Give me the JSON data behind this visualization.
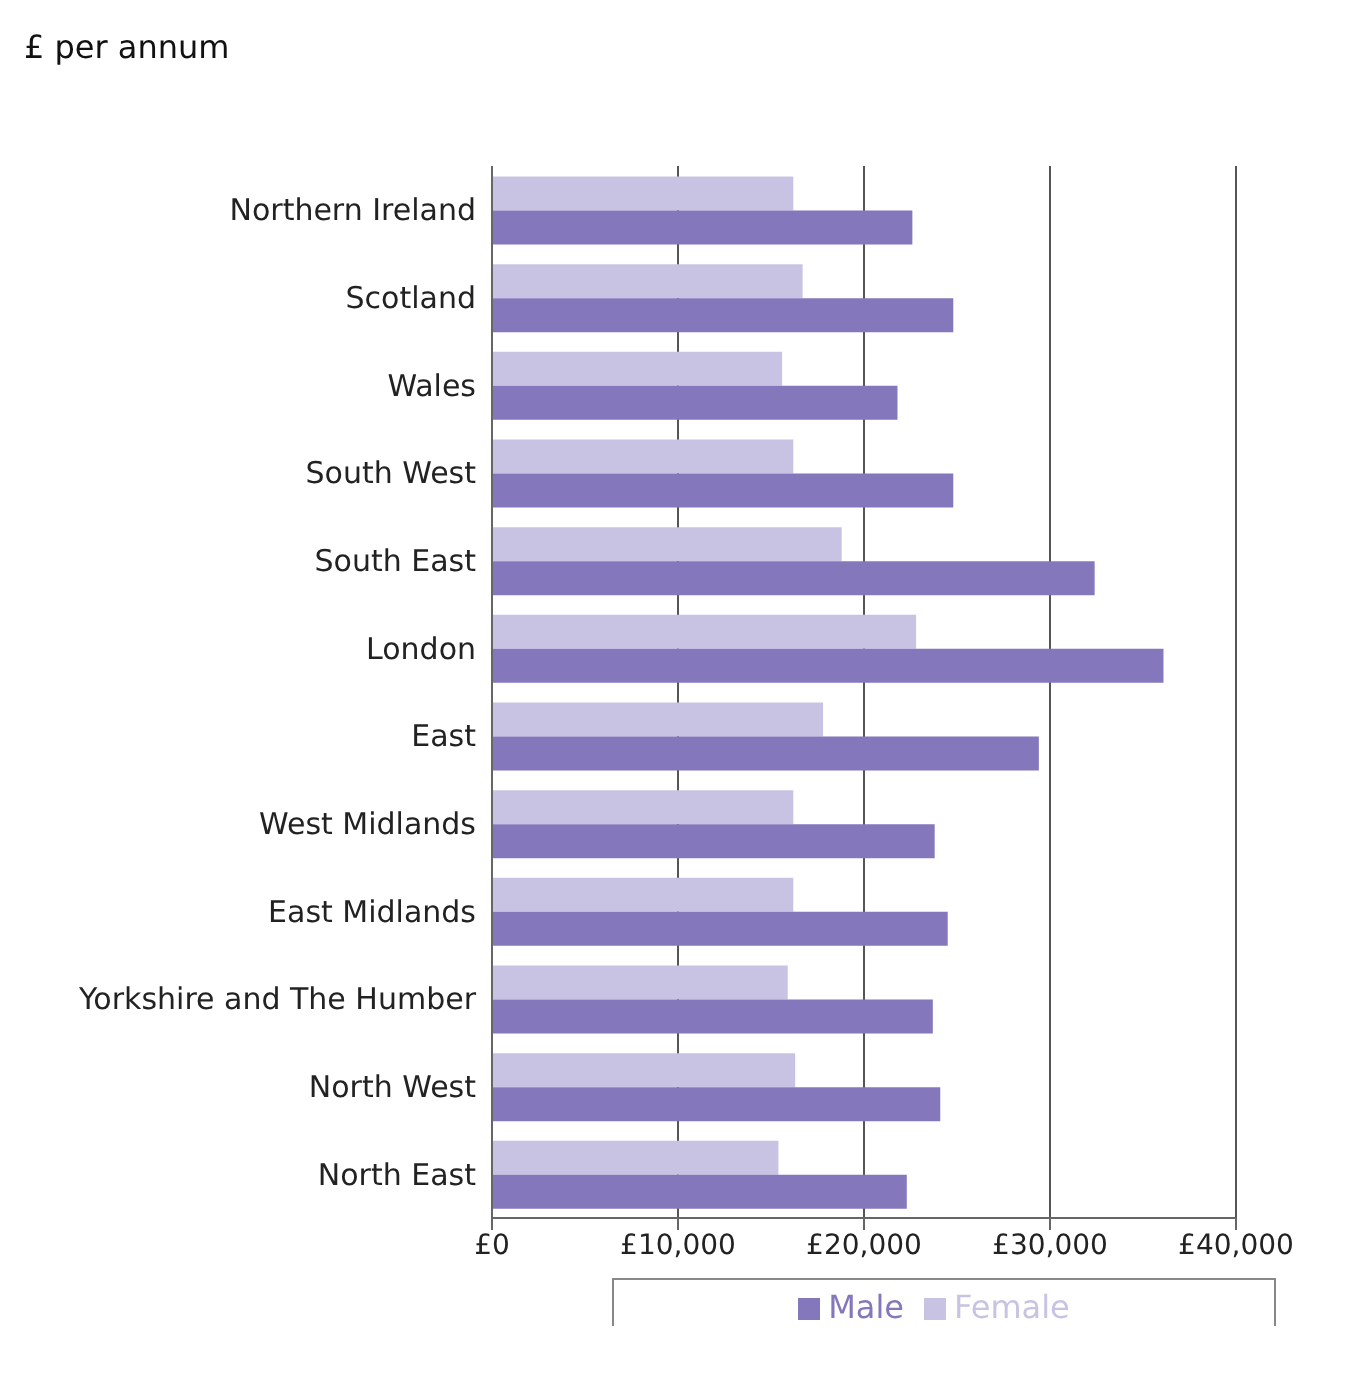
{
  "chart_data": {
    "type": "bar",
    "orientation": "horizontal",
    "title": "£ per annum",
    "categories": [
      "Northern Ireland",
      "Scotland",
      "Wales",
      "South West",
      "South East",
      "London",
      "East",
      "West Midlands",
      "East Midlands",
      "Yorkshire and The Humber",
      "North West",
      "North East"
    ],
    "series": [
      {
        "name": "Female",
        "color": "#c9c3e3",
        "values": [
          16200,
          16700,
          15600,
          16200,
          18800,
          22800,
          17800,
          16200,
          16200,
          15900,
          16300,
          15400
        ]
      },
      {
        "name": "Male",
        "color": "#8477bb",
        "values": [
          22600,
          24800,
          21800,
          24800,
          32400,
          36100,
          29400,
          23800,
          24500,
          23700,
          24100,
          22300
        ]
      }
    ],
    "xlim": [
      0,
      40000
    ],
    "xticks": [
      {
        "value": 0,
        "label": "£0"
      },
      {
        "value": 10000,
        "label": "£10,000"
      },
      {
        "value": 20000,
        "label": "£20,000"
      },
      {
        "value": 30000,
        "label": "£30,000"
      },
      {
        "value": 40000,
        "label": "£40,000"
      }
    ],
    "grid": "x",
    "legend": "bottom"
  }
}
